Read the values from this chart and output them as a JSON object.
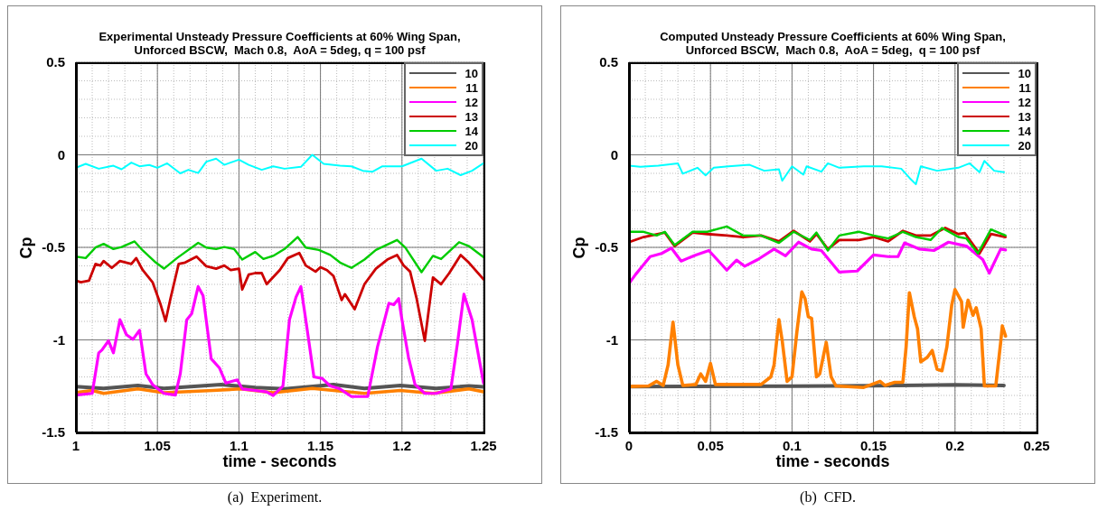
{
  "chart_data": [
    {
      "type": "line",
      "title": "Experimental Unsteady Pressure Coefficients at 60% Wing Span,\nUnforced BSCW,  Mach 0.8,  AoA = 5deg, q = 100 psf",
      "xlabel": "time - seconds",
      "ylabel": "Cp",
      "annotations": [
        "(a)  Experiment."
      ],
      "grid": true,
      "legend": "top right",
      "xlim": [
        1,
        1.25
      ],
      "ylim": [
        -1.5,
        0.5
      ],
      "xticks": [
        1,
        {
          "value": 1.01,
          "label": null
        },
        {
          "value": 1.02,
          "label": null
        },
        {
          "value": 1.03,
          "label": null
        },
        {
          "value": 1.04,
          "label": null
        },
        1.05,
        {
          "value": 1.06,
          "label": null
        },
        {
          "value": 1.07,
          "label": null
        },
        {
          "value": 1.08,
          "label": null
        },
        {
          "value": 1.09,
          "label": null
        },
        1.1,
        {
          "value": 1.11,
          "label": null
        },
        {
          "value": 1.12,
          "label": null
        },
        {
          "value": 1.13,
          "label": null
        },
        {
          "value": 1.14,
          "label": null
        },
        1.15,
        {
          "value": 1.16,
          "label": null
        },
        {
          "value": 1.17,
          "label": null
        },
        {
          "value": 1.18,
          "label": null
        },
        {
          "value": 1.19,
          "label": null
        },
        1.2,
        {
          "value": 1.21,
          "label": null
        },
        {
          "value": 1.22,
          "label": null
        },
        {
          "value": 1.23,
          "label": null
        },
        {
          "value": 1.24,
          "label": null
        },
        1.25
      ],
      "yticks": [
        -1.5,
        {
          "value": -1.4,
          "label": null
        },
        {
          "value": -1.3,
          "label": null
        },
        {
          "value": -1.2,
          "label": null
        },
        {
          "value": -1.1,
          "label": null
        },
        -1,
        {
          "value": -0.9,
          "label": null
        },
        {
          "value": -0.8,
          "label": null
        },
        {
          "value": -0.7,
          "label": null
        },
        {
          "value": -0.6,
          "label": null
        },
        -0.5,
        {
          "value": -0.4,
          "label": null
        },
        {
          "value": -0.3,
          "label": null
        },
        {
          "value": -0.2,
          "label": null
        },
        {
          "value": -0.1,
          "label": null
        },
        0,
        {
          "value": 0.1,
          "label": null
        },
        {
          "value": 0.2,
          "label": null
        },
        {
          "value": 0.3,
          "label": null
        },
        {
          "value": 0.4,
          "label": null
        },
        0.5
      ],
      "series": [
        {
          "name": "10",
          "color": "#555555",
          "x": [
            1,
            1.017,
            1.038,
            1.054,
            1.089,
            1.11,
            1.128,
            1.158,
            1.177,
            1.199,
            1.221,
            1.241,
            1.25
          ],
          "values": [
            -1.252,
            -1.262,
            -1.246,
            -1.262,
            -1.242,
            -1.257,
            -1.265,
            -1.241,
            -1.262,
            -1.246,
            -1.262,
            -1.249,
            -1.254
          ]
        },
        {
          "name": "11",
          "color": "#ff8000",
          "x": [
            1,
            1.01,
            1.017,
            1.038,
            1.054,
            1.084,
            1.101,
            1.121,
            1.145,
            1.177,
            1.199,
            1.219,
            1.241,
            1.25
          ],
          "values": [
            -1.285,
            -1.273,
            -1.289,
            -1.265,
            -1.285,
            -1.273,
            -1.265,
            -1.285,
            -1.262,
            -1.289,
            -1.273,
            -1.289,
            -1.265,
            -1.28
          ]
        },
        {
          "name": "12",
          "color": "#ff00ff",
          "x": [
            1,
            1.01,
            1.014,
            1.016,
            1.02,
            1.023,
            1.027,
            1.031,
            1.035,
            1.039,
            1.043,
            1.047,
            1.054,
            1.061,
            1.064,
            1.068,
            1.071,
            1.075,
            1.078,
            1.083,
            1.088,
            1.092,
            1.099,
            1.102,
            1.11,
            1.117,
            1.121,
            1.127,
            1.131,
            1.135,
            1.138,
            1.141,
            1.146,
            1.151,
            1.156,
            1.162,
            1.169,
            1.179,
            1.185,
            1.192,
            1.195,
            1.198,
            1.2,
            1.204,
            1.208,
            1.214,
            1.221,
            1.23,
            1.234,
            1.238,
            1.243,
            1.25
          ],
          "values": [
            -1.298,
            -1.289,
            -1.07,
            -1.054,
            -1.005,
            -1.07,
            -0.891,
            -0.972,
            -0.997,
            -0.948,
            -1.184,
            -1.241,
            -1.289,
            -1.298,
            -1.184,
            -0.891,
            -0.859,
            -0.712,
            -0.761,
            -1.102,
            -1.151,
            -1.233,
            -1.216,
            -1.265,
            -1.273,
            -1.281,
            -1.301,
            -1.249,
            -0.891,
            -0.769,
            -0.712,
            -0.891,
            -1.2,
            -1.208,
            -1.249,
            -1.265,
            -1.306,
            -1.306,
            -1.037,
            -0.802,
            -0.81,
            -0.777,
            -0.891,
            -1.094,
            -1.241,
            -1.289,
            -1.289,
            -1.265,
            -1.021,
            -0.753,
            -0.891,
            -1.233
          ]
        },
        {
          "name": "13",
          "color": "#cc0000",
          "x": [
            1,
            1.003,
            1.008,
            1.012,
            1.015,
            1.017,
            1.022,
            1.027,
            1.034,
            1.037,
            1.041,
            1.047,
            1.052,
            1.055,
            1.058,
            1.063,
            1.067,
            1.074,
            1.08,
            1.086,
            1.091,
            1.095,
            1.1,
            1.102,
            1.106,
            1.11,
            1.114,
            1.117,
            1.125,
            1.13,
            1.137,
            1.141,
            1.147,
            1.15,
            1.154,
            1.158,
            1.163,
            1.165,
            1.171,
            1.177,
            1.184,
            1.191,
            1.197,
            1.201,
            1.205,
            1.209,
            1.214,
            1.219,
            1.224,
            1.229,
            1.236,
            1.241,
            1.25
          ],
          "values": [
            -0.68,
            -0.688,
            -0.68,
            -0.59,
            -0.598,
            -0.574,
            -0.611,
            -0.574,
            -0.59,
            -0.558,
            -0.623,
            -0.688,
            -0.81,
            -0.899,
            -0.777,
            -0.59,
            -0.582,
            -0.55,
            -0.602,
            -0.615,
            -0.598,
            -0.623,
            -0.615,
            -0.728,
            -0.647,
            -0.639,
            -0.639,
            -0.699,
            -0.623,
            -0.558,
            -0.53,
            -0.598,
            -0.631,
            -0.607,
            -0.623,
            -0.655,
            -0.785,
            -0.753,
            -0.834,
            -0.699,
            -0.615,
            -0.566,
            -0.541,
            -0.598,
            -0.631,
            -0.777,
            -1.005,
            -0.663,
            -0.699,
            -0.639,
            -0.541,
            -0.582,
            -0.672
          ]
        },
        {
          "name": "14",
          "color": "#00cc00",
          "x": [
            1,
            1.006,
            1.012,
            1.017,
            1.023,
            1.028,
            1.036,
            1.041,
            1.049,
            1.054,
            1.062,
            1.075,
            1.08,
            1.086,
            1.091,
            1.097,
            1.102,
            1.11,
            1.115,
            1.121,
            1.128,
            1.136,
            1.141,
            1.149,
            1.156,
            1.162,
            1.169,
            1.177,
            1.184,
            1.197,
            1.202,
            1.212,
            1.219,
            1.224,
            1.235,
            1.241,
            1.25
          ],
          "values": [
            -0.55,
            -0.558,
            -0.501,
            -0.481,
            -0.509,
            -0.498,
            -0.468,
            -0.517,
            -0.582,
            -0.615,
            -0.558,
            -0.476,
            -0.501,
            -0.509,
            -0.498,
            -0.509,
            -0.566,
            -0.525,
            -0.563,
            -0.546,
            -0.509,
            -0.444,
            -0.501,
            -0.514,
            -0.541,
            -0.582,
            -0.611,
            -0.566,
            -0.514,
            -0.46,
            -0.501,
            -0.634,
            -0.546,
            -0.563,
            -0.472,
            -0.493,
            -0.553
          ]
        },
        {
          "name": "20",
          "color": "#00ffff",
          "x": [
            1,
            1.006,
            1.014,
            1.023,
            1.028,
            1.034,
            1.039,
            1.045,
            1.05,
            1.056,
            1.064,
            1.069,
            1.075,
            1.08,
            1.086,
            1.091,
            1.1,
            1.106,
            1.114,
            1.121,
            1.128,
            1.138,
            1.145,
            1.152,
            1.162,
            1.169,
            1.176,
            1.182,
            1.188,
            1.2,
            1.212,
            1.221,
            1.228,
            1.236,
            1.243,
            1.25
          ],
          "values": [
            -0.07,
            -0.049,
            -0.075,
            -0.059,
            -0.078,
            -0.042,
            -0.062,
            -0.055,
            -0.07,
            -0.046,
            -0.1,
            -0.081,
            -0.098,
            -0.037,
            -0.021,
            -0.054,
            -0.026,
            -0.054,
            -0.081,
            -0.062,
            -0.075,
            -0.065,
            0,
            -0.049,
            -0.059,
            -0.062,
            -0.086,
            -0.091,
            -0.062,
            -0.062,
            -0.021,
            -0.086,
            -0.075,
            -0.11,
            -0.086,
            -0.046
          ]
        }
      ]
    },
    {
      "type": "line",
      "title": "Computed Unsteady Pressure Coefficients at 60% Wing Span,\nUnforced BSCW,  Mach 0.8,  AoA = 5deg,  q = 100 psf",
      "xlabel": "time - seconds",
      "ylabel": "Cp",
      "annotations": [
        "(b)  CFD."
      ],
      "grid": true,
      "legend": "top right",
      "xlim": [
        0,
        0.25
      ],
      "ylim": [
        -1.5,
        0.5
      ],
      "xticks": [
        0,
        {
          "value": 0.01,
          "label": null
        },
        {
          "value": 0.02,
          "label": null
        },
        {
          "value": 0.03,
          "label": null
        },
        {
          "value": 0.04,
          "label": null
        },
        0.05,
        {
          "value": 0.06,
          "label": null
        },
        {
          "value": 0.07,
          "label": null
        },
        {
          "value": 0.08,
          "label": null
        },
        {
          "value": 0.09,
          "label": null
        },
        0.1,
        {
          "value": 0.11,
          "label": null
        },
        {
          "value": 0.12,
          "label": null
        },
        {
          "value": 0.13,
          "label": null
        },
        {
          "value": 0.14,
          "label": null
        },
        0.15,
        {
          "value": 0.16,
          "label": null
        },
        {
          "value": 0.17,
          "label": null
        },
        {
          "value": 0.18,
          "label": null
        },
        {
          "value": 0.19,
          "label": null
        },
        0.2,
        {
          "value": 0.21,
          "label": null
        },
        {
          "value": 0.22,
          "label": null
        },
        {
          "value": 0.23,
          "label": null
        },
        {
          "value": 0.24,
          "label": null
        },
        0.25
      ],
      "yticks": [
        -1.5,
        {
          "value": -1.4,
          "label": null
        },
        {
          "value": -1.3,
          "label": null
        },
        {
          "value": -1.2,
          "label": null
        },
        {
          "value": -1.1,
          "label": null
        },
        -1,
        {
          "value": -0.9,
          "label": null
        },
        {
          "value": -0.8,
          "label": null
        },
        {
          "value": -0.7,
          "label": null
        },
        {
          "value": -0.6,
          "label": null
        },
        -0.5,
        {
          "value": -0.4,
          "label": null
        },
        {
          "value": -0.3,
          "label": null
        },
        {
          "value": -0.2,
          "label": null
        },
        {
          "value": -0.1,
          "label": null
        },
        0,
        {
          "value": 0.1,
          "label": null
        },
        {
          "value": 0.2,
          "label": null
        },
        {
          "value": 0.3,
          "label": null
        },
        {
          "value": 0.4,
          "label": null
        },
        0.5
      ],
      "series": [
        {
          "name": "10",
          "color": "#555555",
          "x": [
            0,
            0.1,
            0.15,
            0.2,
            0.23
          ],
          "values": [
            -1.252,
            -1.25,
            -1.248,
            -1.243,
            -1.246
          ]
        },
        {
          "name": "11",
          "color": "#ff8000",
          "x": [
            0,
            0.012,
            0.017,
            0.021,
            0.024,
            0.027,
            0.03,
            0.033,
            0.041,
            0.044,
            0.047,
            0.05,
            0.053,
            0.081,
            0.087,
            0.089,
            0.092,
            0.094,
            0.097,
            0.1,
            0.103,
            0.106,
            0.108,
            0.11,
            0.112,
            0.115,
            0.117,
            0.121,
            0.124,
            0.127,
            0.144,
            0.154,
            0.157,
            0.163,
            0.168,
            0.17,
            0.172,
            0.175,
            0.177,
            0.179,
            0.183,
            0.186,
            0.189,
            0.192,
            0.195,
            0.198,
            0.2,
            0.204,
            0.205,
            0.208,
            0.211,
            0.213,
            0.216,
            0.218,
            0.225,
            0.228,
            0.229,
            0.231
          ],
          "values": [
            -1.252,
            -1.249,
            -1.224,
            -1.246,
            -1.135,
            -0.904,
            -1.135,
            -1.246,
            -1.241,
            -1.184,
            -1.224,
            -1.127,
            -1.241,
            -1.241,
            -1.2,
            -1.135,
            -0.891,
            -1.005,
            -1.224,
            -1.2,
            -0.956,
            -0.741,
            -0.777,
            -0.875,
            -0.883,
            -1.2,
            -1.184,
            -1.013,
            -1.2,
            -1.249,
            -1.257,
            -1.224,
            -1.246,
            -1.229,
            -1.229,
            -1.037,
            -0.745,
            -0.875,
            -0.94,
            -1.119,
            -1.094,
            -1.057,
            -1.159,
            -1.167,
            -1.037,
            -0.81,
            -0.728,
            -0.793,
            -0.932,
            -0.785,
            -0.867,
            -0.826,
            -0.94,
            -1.249,
            -1.249,
            -1.013,
            -0.924,
            -0.98
          ]
        },
        {
          "name": "12",
          "color": "#ff00ff",
          "x": [
            0,
            0.004,
            0.007,
            0.013,
            0.02,
            0.026,
            0.032,
            0.041,
            0.049,
            0.06,
            0.066,
            0.071,
            0.079,
            0.089,
            0.096,
            0.104,
            0.112,
            0.118,
            0.129,
            0.14,
            0.15,
            0.159,
            0.165,
            0.169,
            0.178,
            0.187,
            0.196,
            0.207,
            0.217,
            0.221,
            0.228,
            0.231
          ],
          "values": [
            -0.696,
            -0.647,
            -0.615,
            -0.55,
            -0.533,
            -0.504,
            -0.574,
            -0.541,
            -0.517,
            -0.623,
            -0.569,
            -0.602,
            -0.566,
            -0.509,
            -0.546,
            -0.472,
            -0.509,
            -0.517,
            -0.634,
            -0.628,
            -0.541,
            -0.55,
            -0.55,
            -0.476,
            -0.509,
            -0.517,
            -0.472,
            -0.493,
            -0.566,
            -0.639,
            -0.509,
            -0.514
          ]
        },
        {
          "name": "13",
          "color": "#cc0000",
          "x": [
            0,
            0.009,
            0.022,
            0.028,
            0.039,
            0.048,
            0.06,
            0.07,
            0.081,
            0.092,
            0.101,
            0.111,
            0.115,
            0.122,
            0.129,
            0.141,
            0.15,
            0.159,
            0.168,
            0.176,
            0.185,
            0.194,
            0.202,
            0.206,
            0.215,
            0.222,
            0.231
          ],
          "values": [
            -0.472,
            -0.444,
            -0.42,
            -0.493,
            -0.42,
            -0.428,
            -0.436,
            -0.444,
            -0.436,
            -0.468,
            -0.411,
            -0.468,
            -0.428,
            -0.509,
            -0.46,
            -0.46,
            -0.444,
            -0.468,
            -0.411,
            -0.436,
            -0.436,
            -0.395,
            -0.428,
            -0.423,
            -0.533,
            -0.428,
            -0.444
          ]
        },
        {
          "name": "14",
          "color": "#00cc00",
          "x": [
            0,
            0.009,
            0.017,
            0.022,
            0.028,
            0.039,
            0.048,
            0.06,
            0.07,
            0.081,
            0.092,
            0.101,
            0.111,
            0.115,
            0.122,
            0.129,
            0.141,
            0.15,
            0.159,
            0.168,
            0.176,
            0.185,
            0.192,
            0.202,
            0.207,
            0.214,
            0.222,
            0.231
          ],
          "values": [
            -0.416,
            -0.416,
            -0.436,
            -0.416,
            -0.488,
            -0.416,
            -0.416,
            -0.387,
            -0.436,
            -0.436,
            -0.476,
            -0.416,
            -0.46,
            -0.42,
            -0.517,
            -0.436,
            -0.416,
            -0.436,
            -0.452,
            -0.416,
            -0.444,
            -0.46,
            -0.395,
            -0.444,
            -0.452,
            -0.533,
            -0.403,
            -0.436
          ]
        },
        {
          "name": "20",
          "color": "#00ffff",
          "x": [
            0,
            0.007,
            0.018,
            0.03,
            0.033,
            0.042,
            0.047,
            0.052,
            0.061,
            0.074,
            0.083,
            0.092,
            0.094,
            0.1,
            0.107,
            0.109,
            0.118,
            0.122,
            0.129,
            0.144,
            0.155,
            0.167,
            0.172,
            0.176,
            0.179,
            0.189,
            0.202,
            0.209,
            0.215,
            0.218,
            0.224,
            0.23
          ],
          "values": [
            -0.059,
            -0.065,
            -0.059,
            -0.046,
            -0.102,
            -0.07,
            -0.111,
            -0.07,
            -0.062,
            -0.054,
            -0.086,
            -0.078,
            -0.14,
            -0.062,
            -0.107,
            -0.062,
            -0.091,
            -0.046,
            -0.07,
            -0.062,
            -0.062,
            -0.075,
            -0.124,
            -0.159,
            -0.062,
            -0.086,
            -0.07,
            -0.046,
            -0.094,
            -0.033,
            -0.086,
            -0.094
          ]
        }
      ]
    }
  ]
}
